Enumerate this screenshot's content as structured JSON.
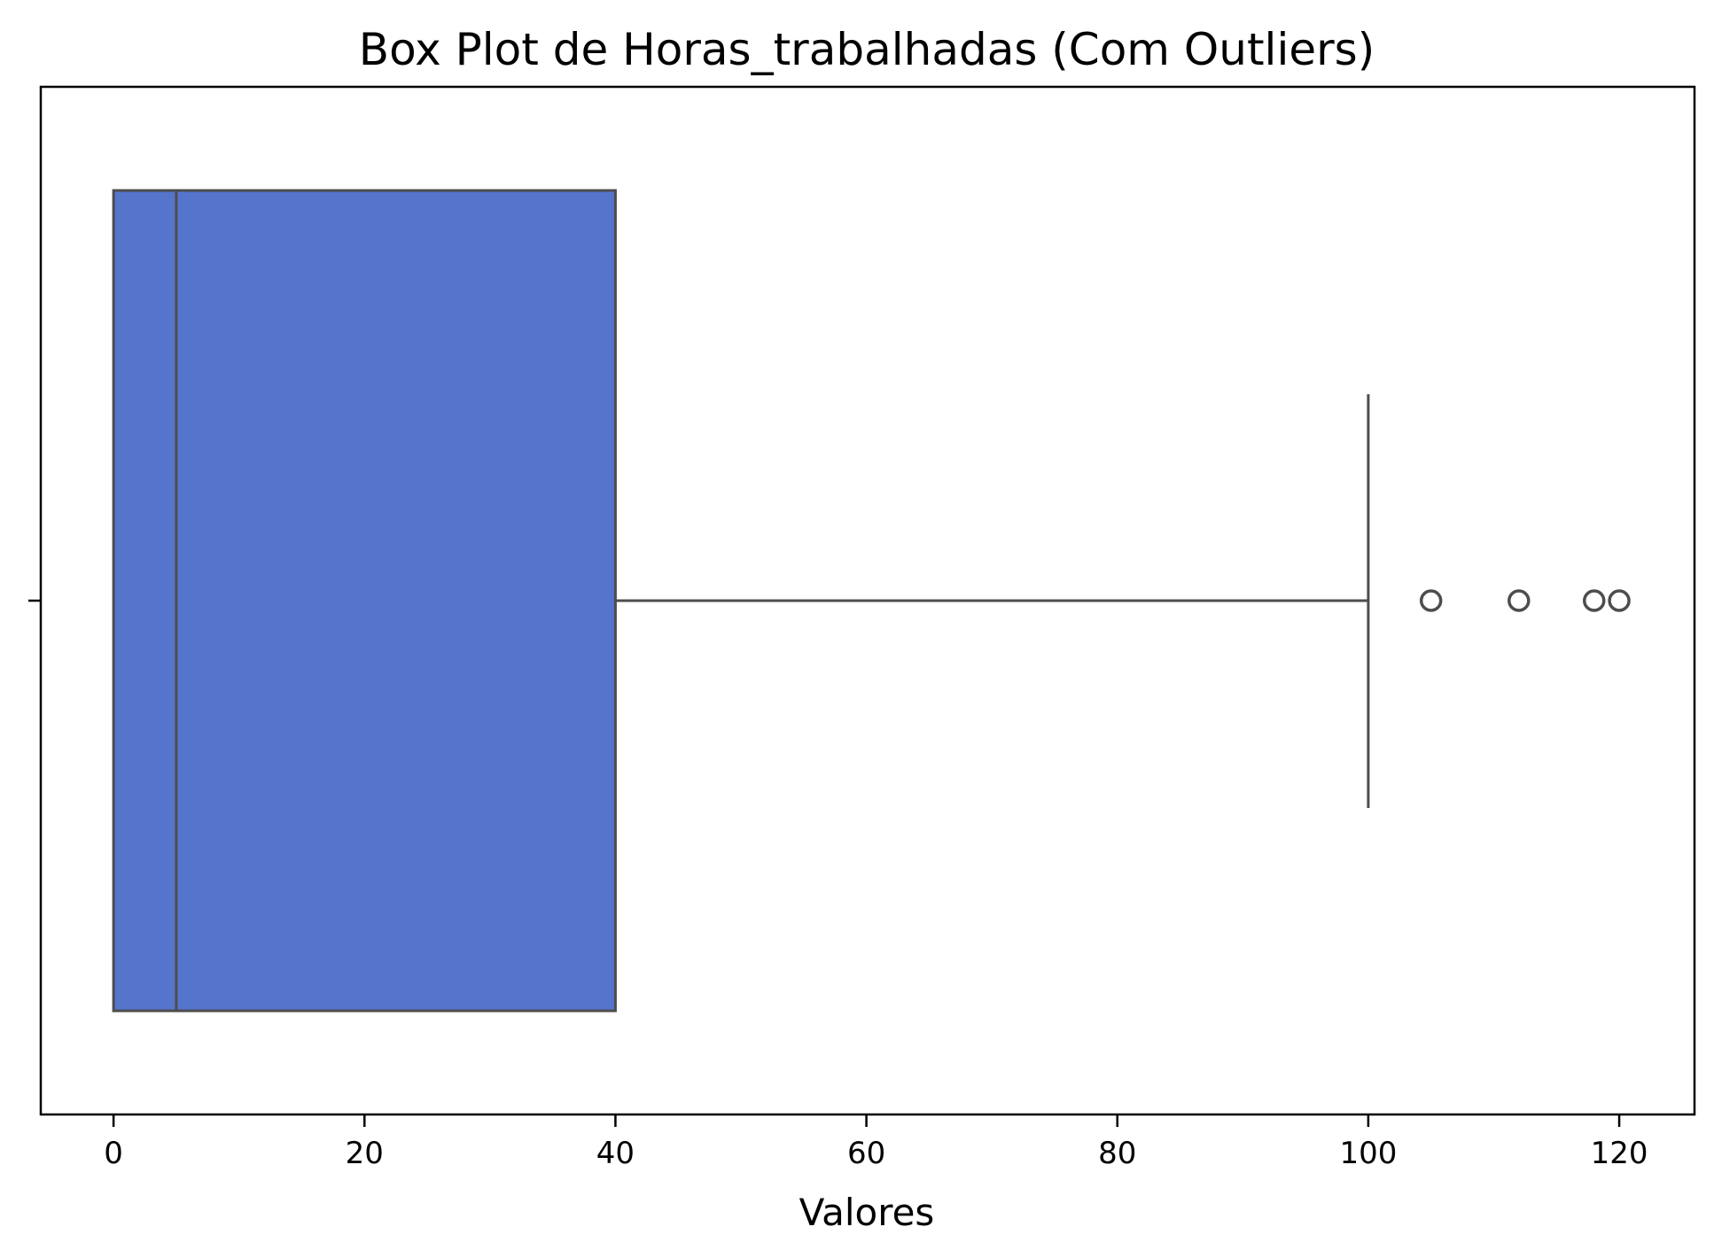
{
  "chart_data": {
    "type": "box",
    "orientation": "horizontal",
    "title": "Box Plot de Horas_trabalhadas (Com Outliers)",
    "xlabel": "Valores",
    "ylabel": "",
    "xlim": [
      -5.8,
      126
    ],
    "x_ticks": [
      0,
      20,
      40,
      60,
      80,
      100,
      120
    ],
    "x_tick_labels": [
      "0",
      "20",
      "40",
      "60",
      "80",
      "100",
      "120"
    ],
    "grid": false,
    "box": {
      "min_whisker": 0,
      "q1": 0,
      "median": 5,
      "q3": 40,
      "max_whisker": 100,
      "outliers": [
        105,
        112,
        118,
        120
      ]
    },
    "colors": {
      "box_fill": "#5574CC",
      "box_line": "#4D4D4D",
      "axes": "#000000"
    }
  }
}
